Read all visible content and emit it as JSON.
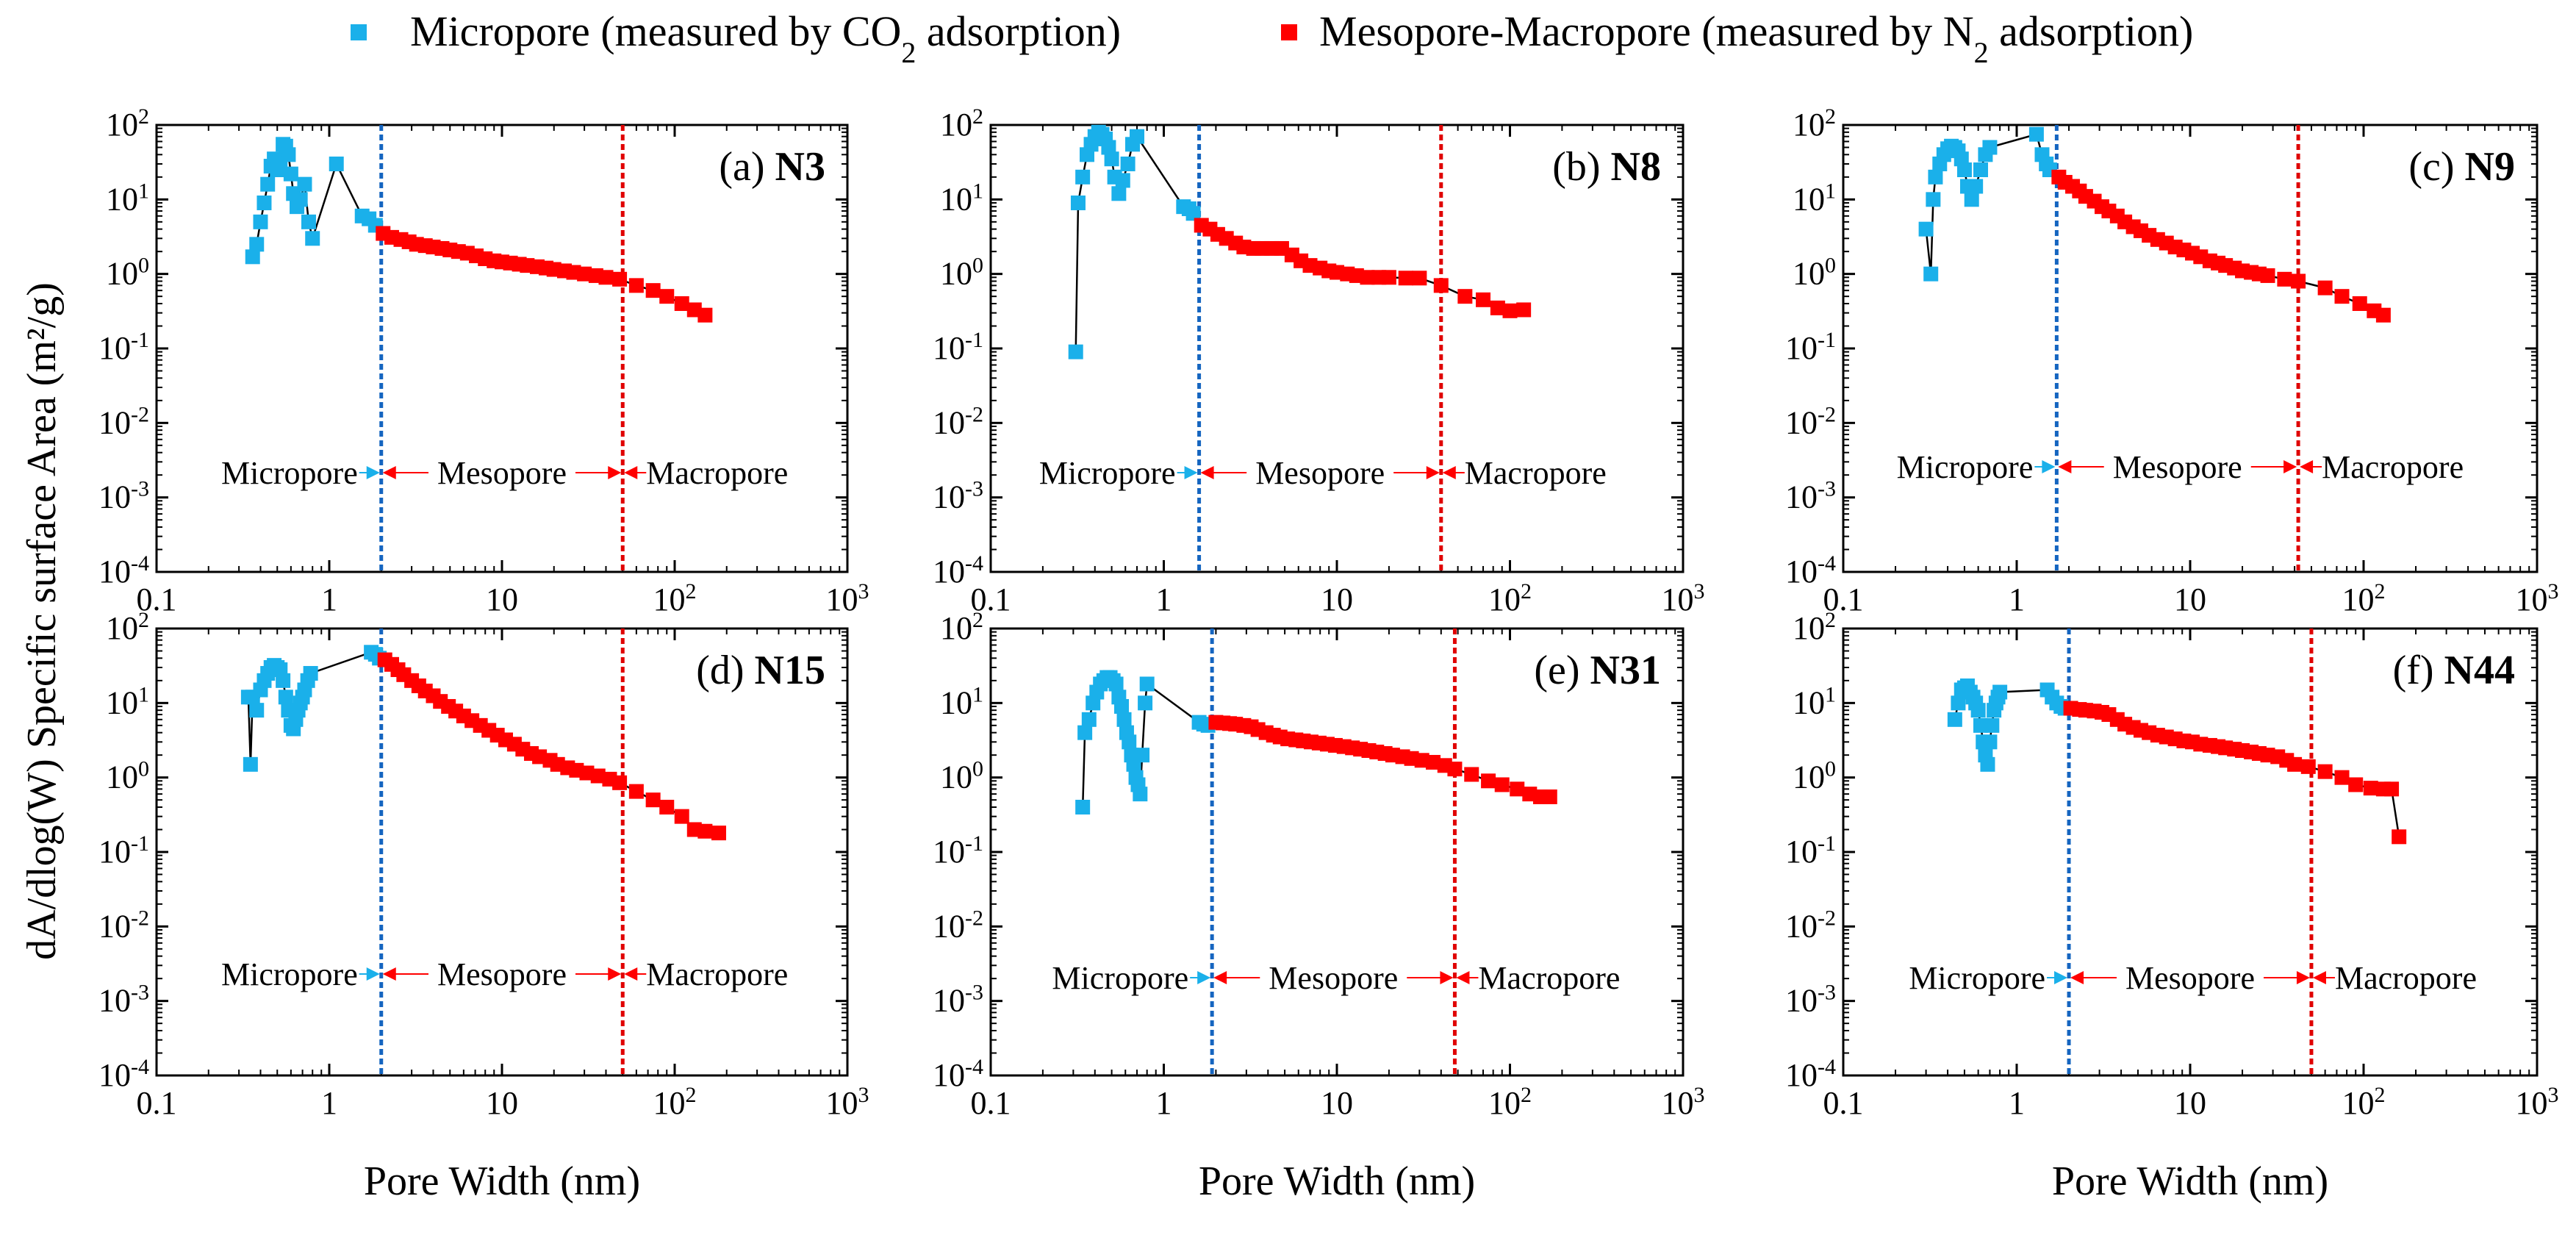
{
  "legend": [
    {
      "label": "Micropore (measured by CO",
      "sub": "2",
      "tail": " adsorption)",
      "color": "#1ab0ea"
    },
    {
      "label": "Mesopore-Macropore (measured by N",
      "sub": "2",
      "tail": " adsorption)",
      "color": "#ff0000"
    }
  ],
  "xlabel": "Pore Width (nm)",
  "ylabel": "dA/dlog(W) Specific  surface Area (m²/g)",
  "x_ticks": [
    {
      "base": "0.1",
      "exp": ""
    },
    {
      "base": "1",
      "exp": ""
    },
    {
      "base": "10",
      "exp": ""
    },
    {
      "base": "10",
      "exp": "2"
    },
    {
      "base": "10",
      "exp": "3"
    }
  ],
  "y_ticks": [
    {
      "base": "10",
      "exp": "2"
    },
    {
      "base": "10",
      "exp": "1"
    },
    {
      "base": "10",
      "exp": "0"
    },
    {
      "base": "10",
      "exp": "-1"
    },
    {
      "base": "10",
      "exp": "-2"
    },
    {
      "base": "10",
      "exp": "-3"
    },
    {
      "base": "10",
      "exp": "-4"
    }
  ],
  "region_labels": [
    "Micropore",
    "Mesopore",
    "Macropore"
  ],
  "colors": {
    "micro": "#1ab0ea",
    "meso": "#ff0000",
    "line_micro": "#1565c0",
    "line_macro": "#e00000"
  },
  "chart_data": [
    {
      "type": "scatter",
      "letter": "(a)",
      "sample": "N3",
      "xlim": [
        0.1,
        1000
      ],
      "ylim": [
        0.0001,
        100
      ],
      "xscale": "log",
      "yscale": "log",
      "micro_boundary": 2,
      "macro_boundary": 50,
      "series": [
        {
          "name": "Micropore (measured by CO2 adsorption)",
          "x": [
            0.36,
            0.38,
            0.4,
            0.42,
            0.44,
            0.46,
            0.48,
            0.5,
            0.52,
            0.54,
            0.56,
            0.58,
            0.6,
            0.62,
            0.65,
            0.68,
            0.72,
            0.76,
            0.8,
            1.1,
            1.55,
            1.7,
            1.85
          ],
          "y": [
            1.7,
            2.5,
            5,
            9,
            16,
            28,
            35,
            25,
            30,
            55,
            52,
            40,
            22,
            12,
            8,
            10,
            16,
            5,
            3,
            30,
            6,
            5.5,
            4.5
          ]
        },
        {
          "name": "Mesopore-Macropore (measured by N2 adsorption)",
          "x": [
            2.05,
            2.3,
            2.6,
            2.9,
            3.2,
            3.6,
            4.0,
            4.5,
            5.0,
            5.6,
            6.3,
            7.1,
            8.0,
            9,
            10,
            11.2,
            12.6,
            14,
            16,
            18,
            20,
            23,
            26,
            30,
            35,
            40,
            48,
            60,
            75,
            90,
            110,
            130,
            150
          ],
          "y": [
            3.5,
            3.1,
            2.9,
            2.7,
            2.5,
            2.4,
            2.3,
            2.2,
            2.1,
            2.0,
            1.9,
            1.75,
            1.6,
            1.5,
            1.45,
            1.4,
            1.35,
            1.3,
            1.25,
            1.2,
            1.15,
            1.1,
            1.05,
            1.0,
            0.95,
            0.9,
            0.85,
            0.7,
            0.6,
            0.5,
            0.4,
            0.33,
            0.28
          ]
        }
      ]
    },
    {
      "type": "scatter",
      "letter": "(b)",
      "sample": "N8",
      "xlim": [
        0.1,
        1000
      ],
      "ylim": [
        0.0001,
        100
      ],
      "xscale": "log",
      "yscale": "log",
      "micro_boundary": 1.6,
      "macro_boundary": 40,
      "series": [
        {
          "name": "Micropore (measured by CO2 adsorption)",
          "x": [
            0.31,
            0.32,
            0.34,
            0.36,
            0.38,
            0.4,
            0.42,
            0.44,
            0.46,
            0.48,
            0.5,
            0.52,
            0.55,
            0.58,
            0.62,
            0.66,
            0.7,
            1.3,
            1.4,
            1.48
          ],
          "y": [
            0.09,
            9,
            20,
            40,
            55,
            70,
            80,
            75,
            65,
            50,
            35,
            20,
            12,
            18,
            30,
            55,
            70,
            8,
            7.5,
            6.5
          ]
        },
        {
          "name": "Mesopore-Macropore (measured by N2 adsorption)",
          "x": [
            1.65,
            1.85,
            2.05,
            2.3,
            2.6,
            2.9,
            3.3,
            3.7,
            4.2,
            4.8,
            5.5,
            6.2,
            7,
            8,
            9,
            10,
            11.5,
            13,
            15,
            17.5,
            20,
            25,
            30,
            40,
            55,
            70,
            85,
            100,
            120
          ],
          "y": [
            4.5,
            4.0,
            3.4,
            3.0,
            2.6,
            2.3,
            2.2,
            2.2,
            2.2,
            2.2,
            1.8,
            1.5,
            1.3,
            1.2,
            1.1,
            1.05,
            1.0,
            0.95,
            0.9,
            0.9,
            0.9,
            0.88,
            0.88,
            0.7,
            0.5,
            0.45,
            0.35,
            0.32,
            0.33
          ]
        }
      ]
    },
    {
      "type": "scatter",
      "letter": "(c)",
      "sample": "N9",
      "xlim": [
        0.1,
        1000
      ],
      "ylim": [
        0.0001,
        100
      ],
      "xscale": "log",
      "yscale": "log",
      "micro_boundary": 1.7,
      "macro_boundary": 42,
      "series": [
        {
          "name": "Micropore (measured by CO2 adsorption)",
          "x": [
            0.3,
            0.32,
            0.33,
            0.34,
            0.36,
            0.38,
            0.4,
            0.42,
            0.44,
            0.46,
            0.48,
            0.5,
            0.52,
            0.55,
            0.58,
            0.62,
            0.66,
            0.7,
            1.3,
            1.4,
            1.48,
            1.55
          ],
          "y": [
            4,
            1,
            10,
            20,
            30,
            40,
            48,
            52,
            50,
            45,
            35,
            25,
            15,
            10,
            15,
            25,
            40,
            50,
            75,
            40,
            30,
            25
          ]
        },
        {
          "name": "Mesopore-Macropore (measured by N2 adsorption)",
          "x": [
            1.75,
            1.9,
            2.1,
            2.3,
            2.5,
            2.8,
            3.1,
            3.4,
            3.8,
            4.2,
            4.7,
            5.2,
            5.8,
            6.5,
            7.3,
            8.2,
            9.2,
            10.3,
            11.5,
            13,
            14.5,
            16,
            18,
            20,
            22.5,
            25,
            28,
            35,
            42,
            60,
            75,
            95,
            115,
            130
          ],
          "y": [
            20,
            17,
            15,
            13,
            11,
            9.5,
            8,
            7,
            6,
            5,
            4.3,
            3.8,
            3.3,
            2.9,
            2.6,
            2.3,
            2.1,
            1.9,
            1.7,
            1.5,
            1.4,
            1.3,
            1.2,
            1.1,
            1.05,
            1.0,
            0.95,
            0.85,
            0.8,
            0.65,
            0.5,
            0.4,
            0.32,
            0.28
          ]
        }
      ]
    },
    {
      "type": "scatter",
      "letter": "(d)",
      "sample": "N15",
      "xlim": [
        0.1,
        1000
      ],
      "ylim": [
        0.0001,
        100
      ],
      "xscale": "log",
      "yscale": "log",
      "micro_boundary": 2,
      "macro_boundary": 50,
      "series": [
        {
          "name": "Micropore (measured by CO2 adsorption)",
          "x": [
            0.34,
            0.35,
            0.36,
            0.38,
            0.4,
            0.42,
            0.44,
            0.46,
            0.48,
            0.5,
            0.52,
            0.54,
            0.56,
            0.58,
            0.6,
            0.62,
            0.64,
            0.66,
            0.68,
            0.7,
            0.72,
            0.75,
            0.78,
            1.75,
            1.85,
            1.95
          ],
          "y": [
            12,
            1.5,
            12,
            8,
            15,
            20,
            25,
            30,
            32,
            30,
            28,
            20,
            12,
            8,
            5,
            4.5,
            6,
            8,
            10,
            12,
            15,
            20,
            25,
            48,
            45,
            40
          ]
        },
        {
          "name": "Mesopore-Macropore (measured by N2 adsorption)",
          "x": [
            2.1,
            2.3,
            2.5,
            2.7,
            3.0,
            3.3,
            3.6,
            4.0,
            4.4,
            4.9,
            5.4,
            6.0,
            6.7,
            7.5,
            8.4,
            9.4,
            10.5,
            11.8,
            13.2,
            14.8,
            16.5,
            19,
            21,
            24,
            27,
            31,
            36,
            42,
            48,
            60,
            75,
            90,
            110,
            130,
            150,
            180
          ],
          "y": [
            38,
            33,
            28,
            24,
            20,
            17,
            14.5,
            12.5,
            10.5,
            9,
            7.8,
            6.7,
            5.8,
            5,
            4.3,
            3.7,
            3.2,
            2.8,
            2.4,
            2.1,
            1.9,
            1.7,
            1.5,
            1.35,
            1.25,
            1.15,
            1.05,
            0.95,
            0.85,
            0.65,
            0.5,
            0.4,
            0.3,
            0.2,
            0.19,
            0.18
          ]
        }
      ]
    },
    {
      "type": "scatter",
      "letter": "(e)",
      "sample": "N31",
      "xlim": [
        0.1,
        1000
      ],
      "ylim": [
        0.0001,
        100
      ],
      "xscale": "log",
      "yscale": "log",
      "micro_boundary": 1.9,
      "macro_boundary": 48,
      "series": [
        {
          "name": "Micropore (measured by CO2 adsorption)",
          "x": [
            0.34,
            0.35,
            0.37,
            0.39,
            0.41,
            0.43,
            0.45,
            0.47,
            0.49,
            0.51,
            0.53,
            0.55,
            0.57,
            0.59,
            0.61,
            0.63,
            0.65,
            0.67,
            0.69,
            0.71,
            0.73,
            0.75,
            0.78,
            0.8,
            1.6,
            1.7,
            1.8
          ],
          "y": [
            0.4,
            4,
            6,
            10,
            14,
            18,
            20,
            22,
            22,
            20,
            18,
            12,
            9,
            6,
            4,
            3,
            2,
            1.5,
            1,
            0.8,
            0.6,
            2,
            10,
            18,
            5.5,
            5.2,
            5
          ]
        },
        {
          "name": "Mesopore-Macropore (measured by N2 adsorption)",
          "x": [
            2.0,
            2.2,
            2.4,
            2.6,
            2.9,
            3.2,
            3.5,
            3.9,
            4.3,
            4.7,
            5.2,
            5.8,
            6.4,
            7.1,
            7.9,
            8.8,
            9.8,
            11,
            12.3,
            13.7,
            15.3,
            17,
            19,
            21,
            24,
            27,
            31,
            36,
            42,
            48,
            60,
            75,
            90,
            110,
            130,
            150,
            170
          ],
          "y": [
            5.5,
            5.4,
            5.3,
            5.2,
            5.0,
            4.8,
            4.4,
            4.0,
            3.7,
            3.5,
            3.3,
            3.2,
            3.1,
            3.0,
            2.9,
            2.8,
            2.7,
            2.6,
            2.5,
            2.4,
            2.3,
            2.2,
            2.1,
            2.0,
            1.9,
            1.8,
            1.7,
            1.6,
            1.45,
            1.3,
            1.1,
            0.9,
            0.8,
            0.7,
            0.6,
            0.55,
            0.55
          ]
        }
      ]
    },
    {
      "type": "scatter",
      "letter": "(f)",
      "sample": "N44",
      "xlim": [
        0.1,
        1000
      ],
      "ylim": [
        0.0001,
        100
      ],
      "xscale": "log",
      "yscale": "log",
      "micro_boundary": 2,
      "macro_boundary": 50,
      "series": [
        {
          "name": "Micropore (measured by CO2 adsorption)",
          "x": [
            0.44,
            0.46,
            0.48,
            0.5,
            0.52,
            0.54,
            0.56,
            0.58,
            0.6,
            0.62,
            0.64,
            0.66,
            0.68,
            0.7,
            0.72,
            0.74,
            0.76,
            0.78,
            0.8,
            1.5,
            1.6,
            1.7,
            1.8,
            1.9
          ],
          "y": [
            6,
            10,
            15,
            16,
            17,
            14,
            12,
            10,
            8,
            5,
            3,
            2,
            1.5,
            3,
            5,
            8,
            10,
            12,
            14,
            15,
            12,
            10,
            9,
            8.5
          ]
        },
        {
          "name": "Mesopore-Macropore (measured by N2 adsorption)",
          "x": [
            2.05,
            2.3,
            2.5,
            2.8,
            3.1,
            3.4,
            3.8,
            4.2,
            4.7,
            5.2,
            5.8,
            6.5,
            7.3,
            8.2,
            9.2,
            10.3,
            11.5,
            13,
            14.5,
            16,
            18,
            20,
            22.5,
            25,
            28,
            32,
            36,
            40,
            48,
            60,
            75,
            90,
            110,
            130,
            145,
            160
          ],
          "y": [
            8.5,
            8.2,
            8.0,
            7.8,
            7.5,
            7.0,
            6.0,
            5.2,
            4.7,
            4.3,
            4.0,
            3.7,
            3.5,
            3.3,
            3.1,
            3.0,
            2.8,
            2.7,
            2.6,
            2.5,
            2.4,
            2.3,
            2.2,
            2.1,
            2.0,
            1.9,
            1.7,
            1.5,
            1.4,
            1.2,
            1.0,
            0.8,
            0.72,
            0.7,
            0.7,
            0.16
          ]
        }
      ]
    }
  ]
}
